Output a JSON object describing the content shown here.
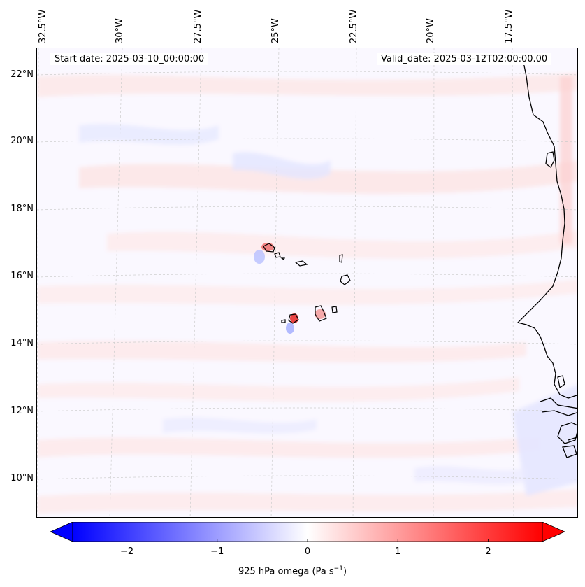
{
  "map": {
    "start_label": "Start date: 2025-03-10_00:00:00",
    "valid_label": "Valid_date: 2025-03-12T02:00:00.00",
    "lon_ticks": [
      "32.5°W",
      "30°W",
      "27.5°W",
      "25°W",
      "22.5°W",
      "20°W",
      "17.5°W"
    ],
    "lat_ticks": [
      "22°N",
      "20°N",
      "18°N",
      "16°N",
      "14°N",
      "12°N",
      "10°N"
    ],
    "features": {
      "coastline": "West Africa coast",
      "islands": "Cape Verde islands"
    }
  },
  "colorbar": {
    "label": "925 hPa omega (Pa s",
    "label_sup": "−1",
    "label_end": ")",
    "ticks": [
      "−2",
      "−1",
      "0",
      "1",
      "2"
    ],
    "tick_values": [
      -2,
      -1,
      0,
      1,
      2
    ],
    "range": [
      -2.6,
      2.6
    ],
    "cmap": "bwr",
    "colors": {
      "min": "#0000ff",
      "mid": "#ffffff",
      "max": "#ff0000"
    }
  }
}
